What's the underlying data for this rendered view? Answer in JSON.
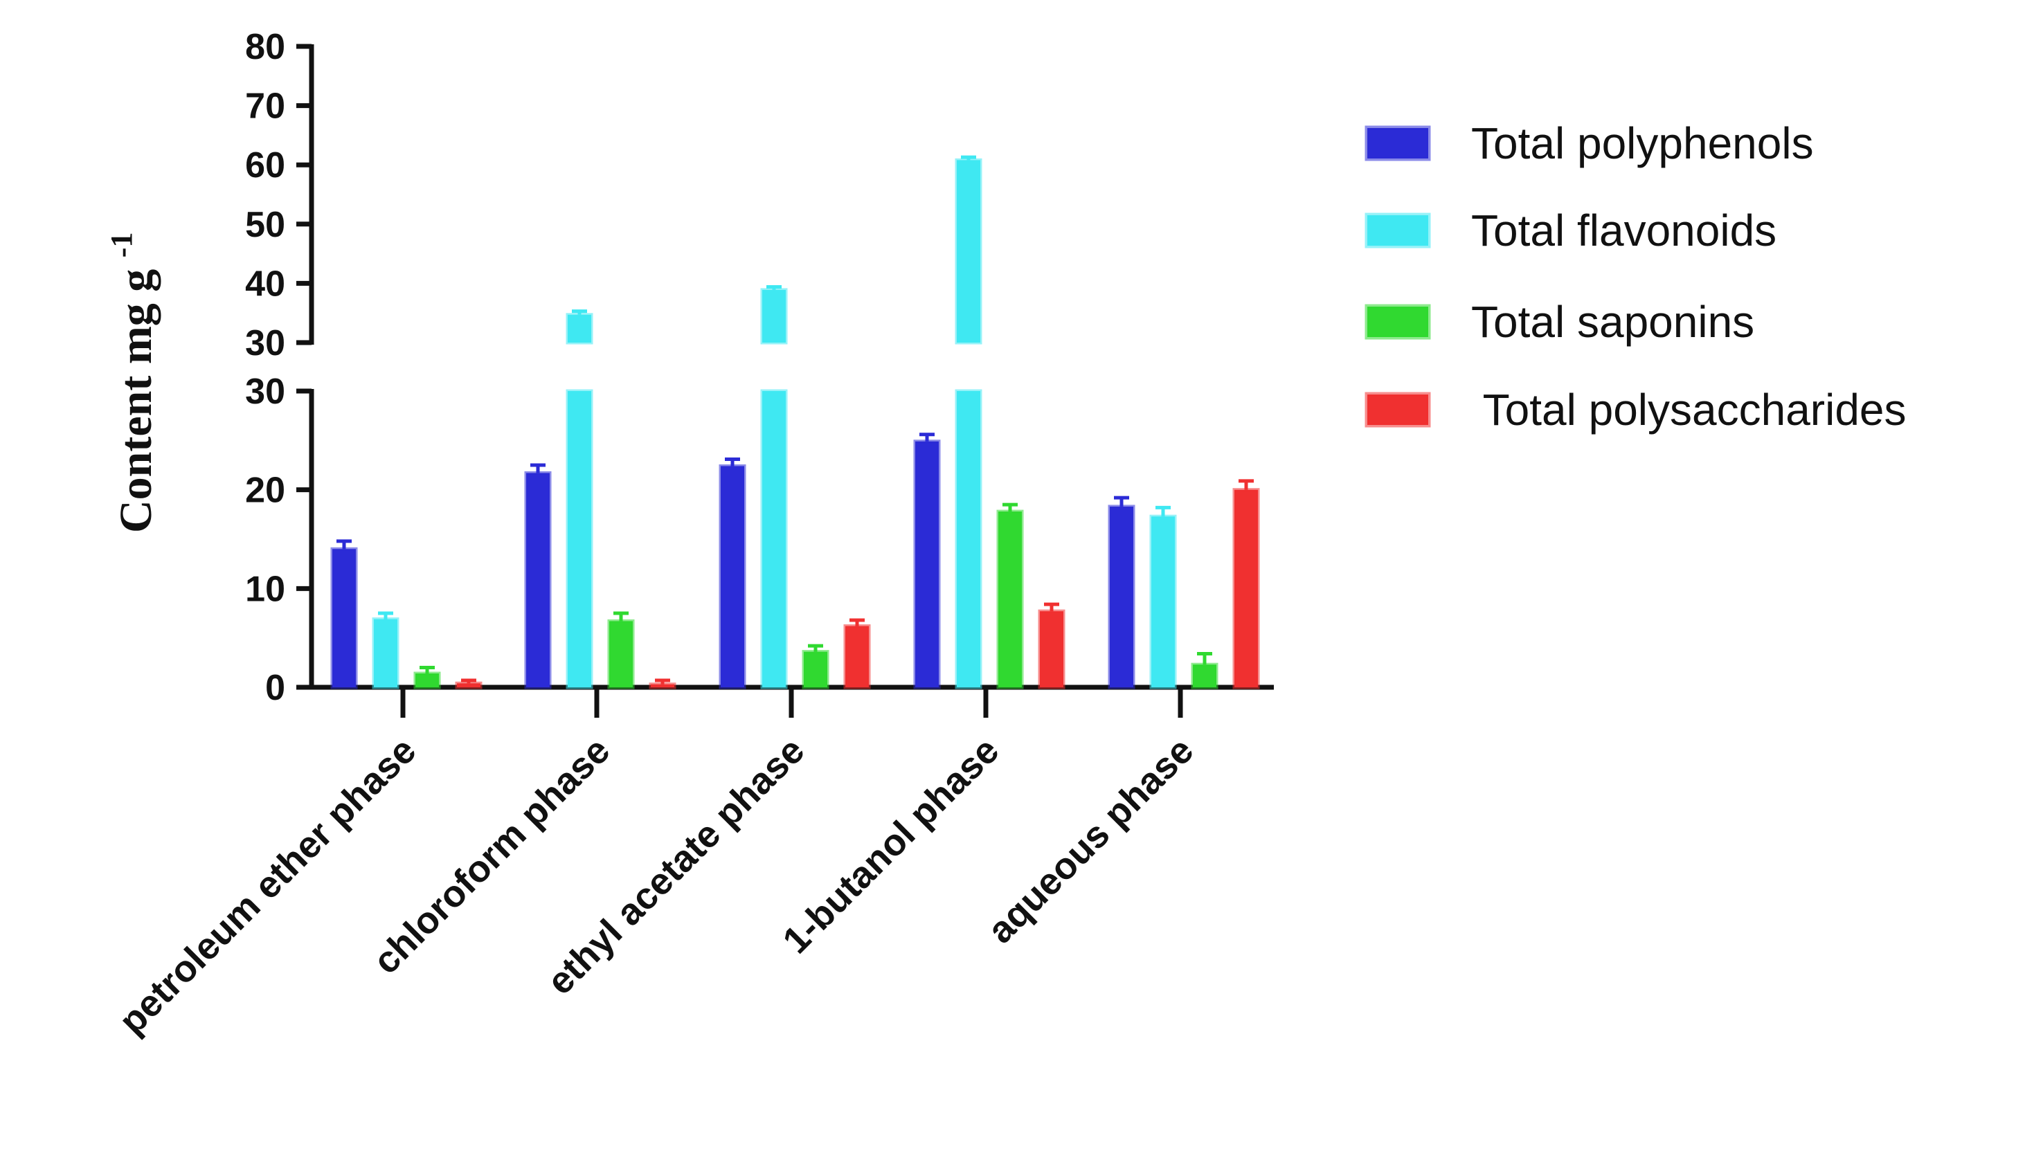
{
  "chart_data": {
    "type": "bar",
    "ylabel": "Content mg g",
    "ylabel_superscript": "-1",
    "y_axis_break": true,
    "ylim_lower": [
      0,
      30
    ],
    "ylim_upper": [
      30,
      80
    ],
    "yticks_lower": [
      "0",
      "10",
      "20",
      "30"
    ],
    "yticks_upper": [
      "30",
      "40",
      "50",
      "60",
      "70",
      "80"
    ],
    "categories": [
      "petroleum ether phase",
      "chloroform phase",
      "ethyl acetate phase",
      "1-butanol phase",
      "aqueous phase"
    ],
    "series": [
      {
        "name": "Total polyphenols",
        "color": "#2b2bd6",
        "values": [
          14,
          21.7,
          22.4,
          24.9,
          18.3
        ],
        "errors": [
          0.8,
          0.8,
          0.7,
          0.7,
          0.9
        ]
      },
      {
        "name": "Total flavonoids",
        "color": "#3fe8f2",
        "values": [
          6.9,
          34.7,
          38.9,
          60.8,
          17.3
        ],
        "errors": [
          0.6,
          0.6,
          0.5,
          0.5,
          0.9
        ]
      },
      {
        "name": "Total saponins",
        "color": "#30d930",
        "values": [
          1.4,
          6.7,
          3.6,
          17.8,
          2.3
        ],
        "errors": [
          0.6,
          0.8,
          0.6,
          0.7,
          1.1
        ]
      },
      {
        "name": " Total polysaccharides",
        "color": "#f03030",
        "values": [
          0.4,
          0.3,
          6.2,
          7.7,
          20.0
        ],
        "errors": [
          0.3,
          0.4,
          0.6,
          0.7,
          0.9
        ]
      }
    ],
    "legend": "right"
  }
}
